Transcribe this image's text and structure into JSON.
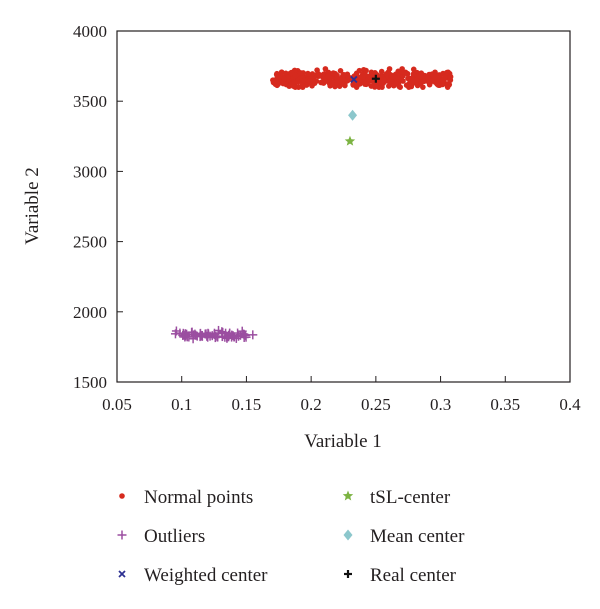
{
  "chart_data": {
    "type": "scatter",
    "xlabel": "Variable 1",
    "ylabel": "Variable 2",
    "xlim": [
      0.05,
      0.4
    ],
    "ylim": [
      1500,
      4000
    ],
    "xticks": [
      "0.05",
      "0.1",
      "0.15",
      "0.2",
      "0.25",
      "0.3",
      "0.35",
      "0.4"
    ],
    "yticks": [
      "1500",
      "2000",
      "2500",
      "3000",
      "3500",
      "4000"
    ],
    "grid": false,
    "legend_placement": "below",
    "series": [
      {
        "name": "Normal points",
        "marker": "circle",
        "color": "#d62a1e",
        "cluster": {
          "x_range": [
            0.17,
            0.308
          ],
          "y_range": [
            3600,
            3730
          ],
          "y_center": 3660,
          "count": 450
        }
      },
      {
        "name": "Outliers",
        "marker": "plus",
        "color": "#9b4ea0",
        "cluster": {
          "x_range": [
            0.095,
            0.155
          ],
          "y_range": [
            1790,
            1870
          ],
          "y_center": 1835,
          "count": 75
        }
      },
      {
        "name": "Weighted center",
        "marker": "x",
        "color": "#2e3192",
        "points": [
          {
            "x": 0.233,
            "y": 3655
          }
        ]
      },
      {
        "name": "tSL-center",
        "marker": "star",
        "color": "#7cb342",
        "points": [
          {
            "x": 0.23,
            "y": 3215
          }
        ]
      },
      {
        "name": "Mean center",
        "marker": "diamond",
        "color": "#8cc7cc",
        "points": [
          {
            "x": 0.232,
            "y": 3400
          }
        ]
      },
      {
        "name": "Real center",
        "marker": "plus-bold",
        "color": "#111111",
        "points": [
          {
            "x": 0.25,
            "y": 3660
          }
        ]
      }
    ]
  }
}
